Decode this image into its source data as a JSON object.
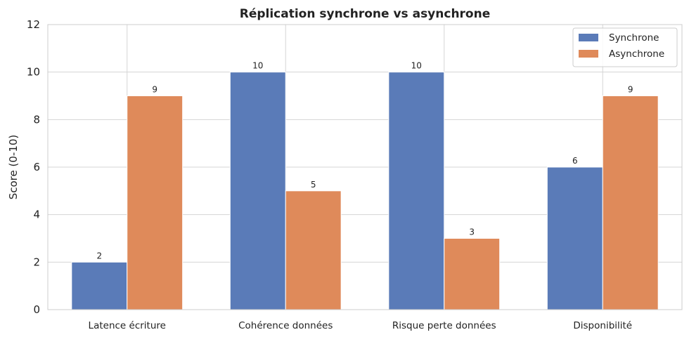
{
  "chart_data": {
    "type": "bar",
    "title": "Réplication synchrone vs asynchrone",
    "xlabel": "",
    "ylabel": "Score (0-10)",
    "ylim": [
      0,
      12
    ],
    "yticks": [
      "0",
      "2",
      "4",
      "6",
      "8",
      "10",
      "12"
    ],
    "categories": [
      "Latence écriture",
      "Cohérence données",
      "Risque perte données",
      "Disponibilité"
    ],
    "series": [
      {
        "name": "Synchrone",
        "values": [
          2,
          10,
          10,
          6
        ],
        "color": "#5a7bb8"
      },
      {
        "name": "Asynchrone",
        "values": [
          9,
          5,
          3,
          9
        ],
        "color": "#df8a5a"
      }
    ],
    "grid": true,
    "legend": "top-right",
    "data_labels": true
  }
}
